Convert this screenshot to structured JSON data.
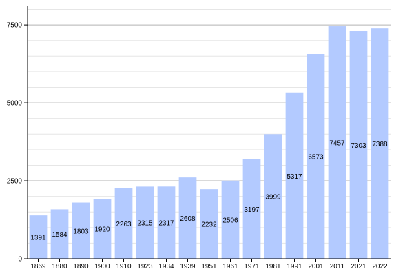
{
  "chart_data": {
    "type": "bar",
    "categories": [
      "1869",
      "1880",
      "1890",
      "1900",
      "1910",
      "1923",
      "1934",
      "1939",
      "1951",
      "1961",
      "1971",
      "1981",
      "1991",
      "2001",
      "2011",
      "2021",
      "2022"
    ],
    "values": [
      1391,
      1584,
      1803,
      1920,
      2263,
      2315,
      2317,
      2608,
      2232,
      2506,
      3197,
      3999,
      5317,
      6573,
      7457,
      7303,
      7388
    ],
    "data_labels": [
      "1391",
      "1584",
      "1803",
      "1920",
      "2263",
      "2315",
      "2317",
      "2608",
      "2232",
      "2506",
      "3197",
      "3999",
      "5317",
      "6573",
      "7457",
      "7303",
      "7388"
    ],
    "y_ticks": [
      0,
      2500,
      5000,
      7500
    ],
    "y_tick_labels": [
      "0",
      "2500",
      "5000",
      "7500"
    ],
    "ylim": [
      0,
      8100
    ],
    "grid": true,
    "colors": {
      "bar": "#b3caff",
      "major_grid": "#b3b3b3",
      "minor_grid": "#e6e6e6",
      "axis": "#000000"
    }
  }
}
